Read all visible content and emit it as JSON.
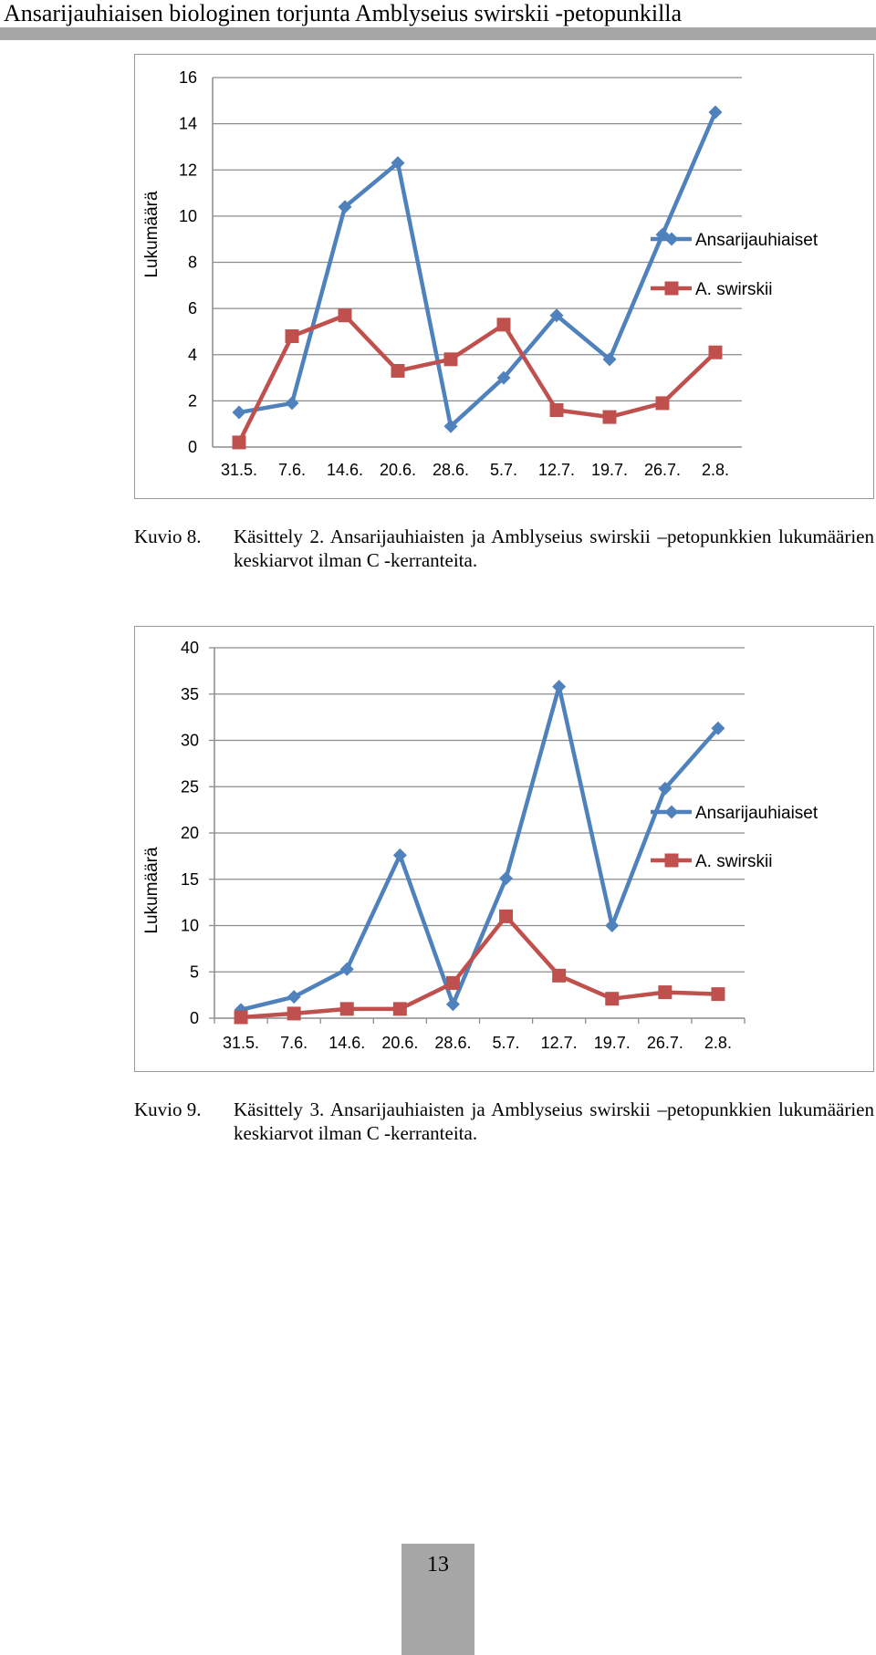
{
  "header": {
    "running_title": "Ansarijauhiaisen biologinen torjunta Amblyseius swirskii -petopunkilla"
  },
  "colors": {
    "series_blue": "#4f81bd",
    "series_red": "#c0504d",
    "gridline": "#8c8c8c",
    "header_bar": "#a6a6a6"
  },
  "chart_data": [
    {
      "type": "line",
      "ylabel": "Lukumäärä",
      "ylim": [
        0,
        16
      ],
      "yticks": [
        0,
        2,
        4,
        6,
        8,
        10,
        12,
        14,
        16
      ],
      "categories": [
        "31.5.",
        "7.6.",
        "14.6.",
        "20.6.",
        "28.6.",
        "5.7.",
        "12.7.",
        "19.7.",
        "26.7.",
        "2.8."
      ],
      "series": [
        {
          "name": "Ansarijauhiaiset",
          "marker": "diamond",
          "color": "#4f81bd",
          "values": [
            1.5,
            1.9,
            10.4,
            12.3,
            0.9,
            3.0,
            5.7,
            3.8,
            9.2,
            14.5
          ]
        },
        {
          "name": "A. swirskii",
          "marker": "square",
          "color": "#c0504d",
          "values": [
            0.2,
            4.8,
            5.7,
            3.3,
            3.8,
            5.3,
            1.6,
            1.3,
            1.9,
            4.1
          ]
        }
      ],
      "legend": "right",
      "grid": true
    },
    {
      "type": "line",
      "ylabel": "Lukumäärä",
      "ylim": [
        0,
        40
      ],
      "yticks": [
        0,
        5,
        10,
        15,
        20,
        25,
        30,
        35,
        40
      ],
      "categories": [
        "31.5.",
        "7.6.",
        "14.6.",
        "20.6.",
        "28.6.",
        "5.7.",
        "12.7.",
        "19.7.",
        "26.7.",
        "2.8."
      ],
      "series": [
        {
          "name": "Ansarijauhiaiset",
          "marker": "diamond",
          "color": "#4f81bd",
          "values": [
            0.9,
            2.3,
            5.3,
            17.6,
            1.5,
            15.1,
            35.8,
            10.0,
            24.8,
            31.3
          ]
        },
        {
          "name": "A. swirskii",
          "marker": "square",
          "color": "#c0504d",
          "values": [
            0.1,
            0.5,
            1.0,
            1.0,
            3.8,
            11.0,
            4.6,
            2.1,
            2.8,
            2.6
          ]
        }
      ],
      "legend": "right",
      "grid": true
    }
  ],
  "captions": [
    {
      "label": "Kuvio 8.",
      "text": "Käsittely 2. Ansarijauhiaisten ja Amblyseius swirskii –petopunkkien lukumäärien keskiarvot ilman C -kerranteita."
    },
    {
      "label": "Kuvio 9.",
      "text": "Käsittely 3. Ansarijauhiaisten ja Amblyseius swirskii –petopunkkien lukumäärien keskiarvot ilman C -kerranteita."
    }
  ],
  "footer": {
    "page_number": "13"
  }
}
